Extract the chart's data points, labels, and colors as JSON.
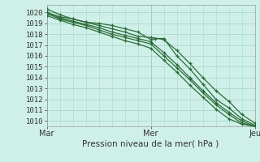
{
  "title": "",
  "xlabel": "Pression niveau de la mer( hPa )",
  "ylabel": "",
  "bg_color": "#cff0e8",
  "grid_color": "#a8d8cc",
  "line_color": "#2d6b3a",
  "ylim": [
    1009.5,
    1020.7
  ],
  "xlim": [
    0,
    48
  ],
  "xtick_positions": [
    0,
    24,
    48
  ],
  "xtick_labels": [
    "Mar",
    "Mer",
    "Jeu"
  ],
  "ytick_positions": [
    1010,
    1011,
    1012,
    1013,
    1014,
    1015,
    1016,
    1017,
    1018,
    1019,
    1020
  ],
  "series": [
    {
      "x": [
        0,
        3,
        6,
        9,
        12,
        15,
        18,
        21,
        24,
        27,
        30,
        33,
        36,
        39,
        42,
        45,
        48
      ],
      "y": [
        1020.3,
        1019.8,
        1019.4,
        1019.1,
        1018.8,
        1018.5,
        1018.2,
        1017.8,
        1017.7,
        1017.5,
        1016.5,
        1015.3,
        1014.0,
        1012.8,
        1011.8,
        1010.6,
        1009.8
      ]
    },
    {
      "x": [
        0,
        3,
        6,
        9,
        12,
        15,
        18,
        21,
        24,
        25,
        27,
        30,
        33,
        36,
        39,
        42,
        45,
        48
      ],
      "y": [
        1020.0,
        1019.6,
        1019.4,
        1019.1,
        1019.0,
        1018.8,
        1018.5,
        1018.2,
        1017.5,
        1017.6,
        1017.6,
        1016.0,
        1014.8,
        1013.4,
        1012.0,
        1011.2,
        1010.2,
        1009.6
      ]
    },
    {
      "x": [
        0,
        3,
        6,
        9,
        12,
        15,
        18,
        21,
        24,
        27,
        30,
        33,
        36,
        39,
        42,
        45,
        48
      ],
      "y": [
        1020.0,
        1019.5,
        1019.2,
        1018.9,
        1018.6,
        1018.2,
        1017.9,
        1017.6,
        1017.3,
        1016.3,
        1015.2,
        1014.0,
        1012.8,
        1011.7,
        1010.8,
        1010.0,
        1009.5
      ]
    },
    {
      "x": [
        0,
        3,
        6,
        9,
        12,
        15,
        18,
        21,
        24,
        27,
        30,
        33,
        36,
        39,
        42,
        45,
        48
      ],
      "y": [
        1019.9,
        1019.4,
        1019.1,
        1018.8,
        1018.4,
        1018.0,
        1017.7,
        1017.4,
        1017.1,
        1016.0,
        1014.9,
        1013.8,
        1012.6,
        1011.5,
        1010.6,
        1009.8,
        1009.5
      ]
    },
    {
      "x": [
        0,
        3,
        6,
        9,
        12,
        15,
        18,
        21,
        24,
        27,
        30,
        33,
        36,
        39,
        42,
        45,
        48
      ],
      "y": [
        1019.7,
        1019.3,
        1018.9,
        1018.6,
        1018.2,
        1017.8,
        1017.4,
        1017.1,
        1016.7,
        1015.6,
        1014.5,
        1013.3,
        1012.2,
        1011.1,
        1010.2,
        1009.7,
        1009.5
      ]
    }
  ]
}
